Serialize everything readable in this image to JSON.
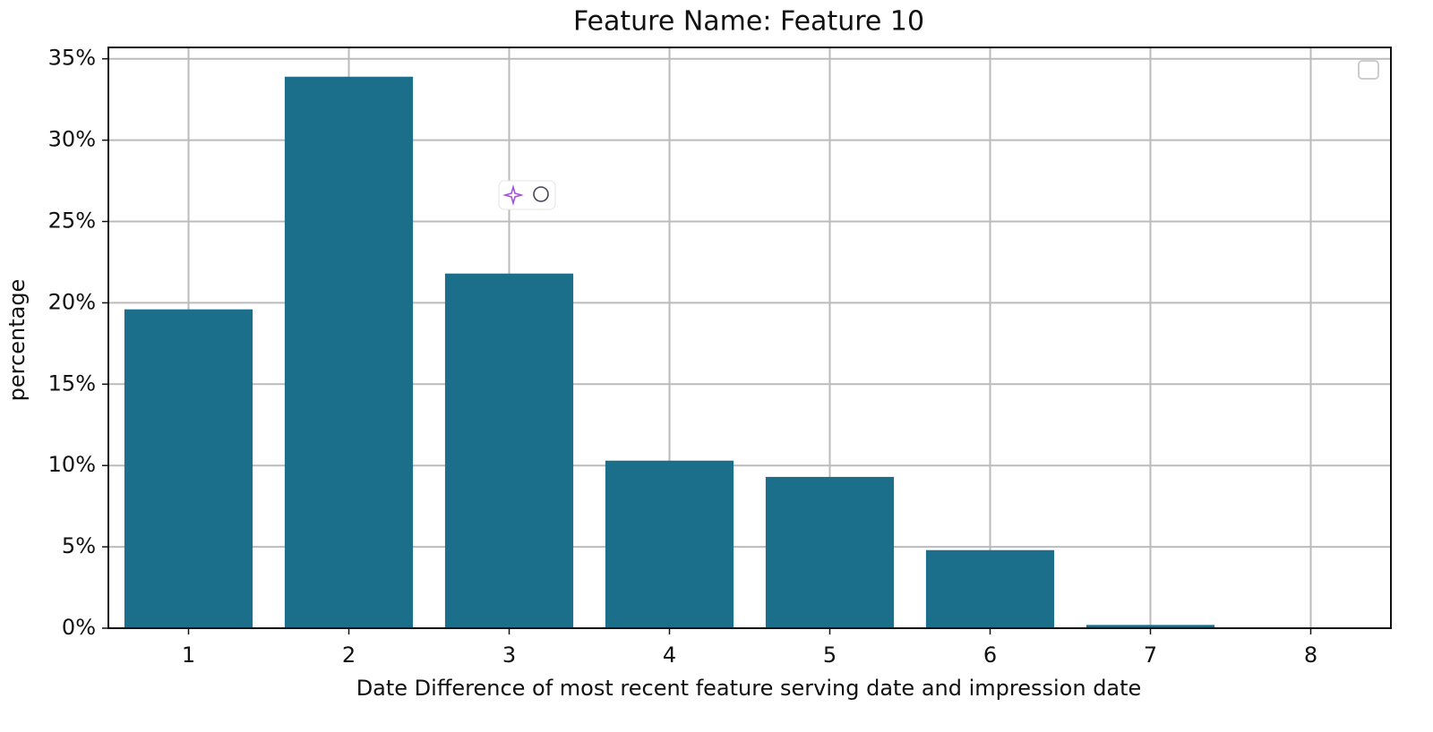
{
  "chart_data": {
    "type": "bar",
    "title": "Feature Name: Feature 10",
    "xlabel": "Date Difference of most recent feature serving date and impression date",
    "ylabel": "percentage",
    "categories": [
      "1",
      "2",
      "3",
      "4",
      "5",
      "6",
      "7",
      "8"
    ],
    "values": [
      19.6,
      33.9,
      21.8,
      10.3,
      9.3,
      4.8,
      0.2,
      0
    ],
    "color": "#1b6f8a",
    "ylim": [
      0,
      35.7
    ],
    "yticks": [
      {
        "value": 0,
        "label": "0%"
      },
      {
        "value": 5,
        "label": "5%"
      },
      {
        "value": 10,
        "label": "10%"
      },
      {
        "value": 15,
        "label": "15%"
      },
      {
        "value": 20,
        "label": "20%"
      },
      {
        "value": 25,
        "label": "25%"
      },
      {
        "value": 30,
        "label": "30%"
      },
      {
        "value": 35,
        "label": "35%"
      }
    ],
    "grid": true
  }
}
